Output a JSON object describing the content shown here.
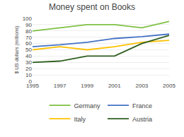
{
  "chart_data": {
    "type": "line",
    "title": "Money spent on Books",
    "ylabel": "$ US dollars (millions)",
    "x": [
      1995,
      1997,
      1999,
      2001,
      2003,
      2005
    ],
    "series": [
      {
        "name": "Germany",
        "color": "#7dc142",
        "values": [
          80,
          85,
          90,
          90,
          85,
          95
        ]
      },
      {
        "name": "France",
        "color": "#4472c4",
        "values": [
          55,
          58,
          62,
          68,
          71,
          75
        ]
      },
      {
        "name": "Italy",
        "color": "#ffc000",
        "values": [
          50,
          55,
          50,
          55,
          62,
          65
        ]
      },
      {
        "name": "Austria",
        "color": "#2e5e1e",
        "values": [
          30,
          32,
          40,
          40,
          60,
          73
        ]
      }
    ],
    "xlim": [
      1995,
      2005
    ],
    "xticks": [
      1995,
      1997,
      1999,
      2001,
      2003,
      2005
    ],
    "ylim": [
      0,
      100
    ],
    "yticks": [
      0,
      10,
      20,
      30,
      40,
      50,
      60,
      70,
      80,
      90,
      100
    ],
    "grid": true,
    "legend": "bottom"
  }
}
